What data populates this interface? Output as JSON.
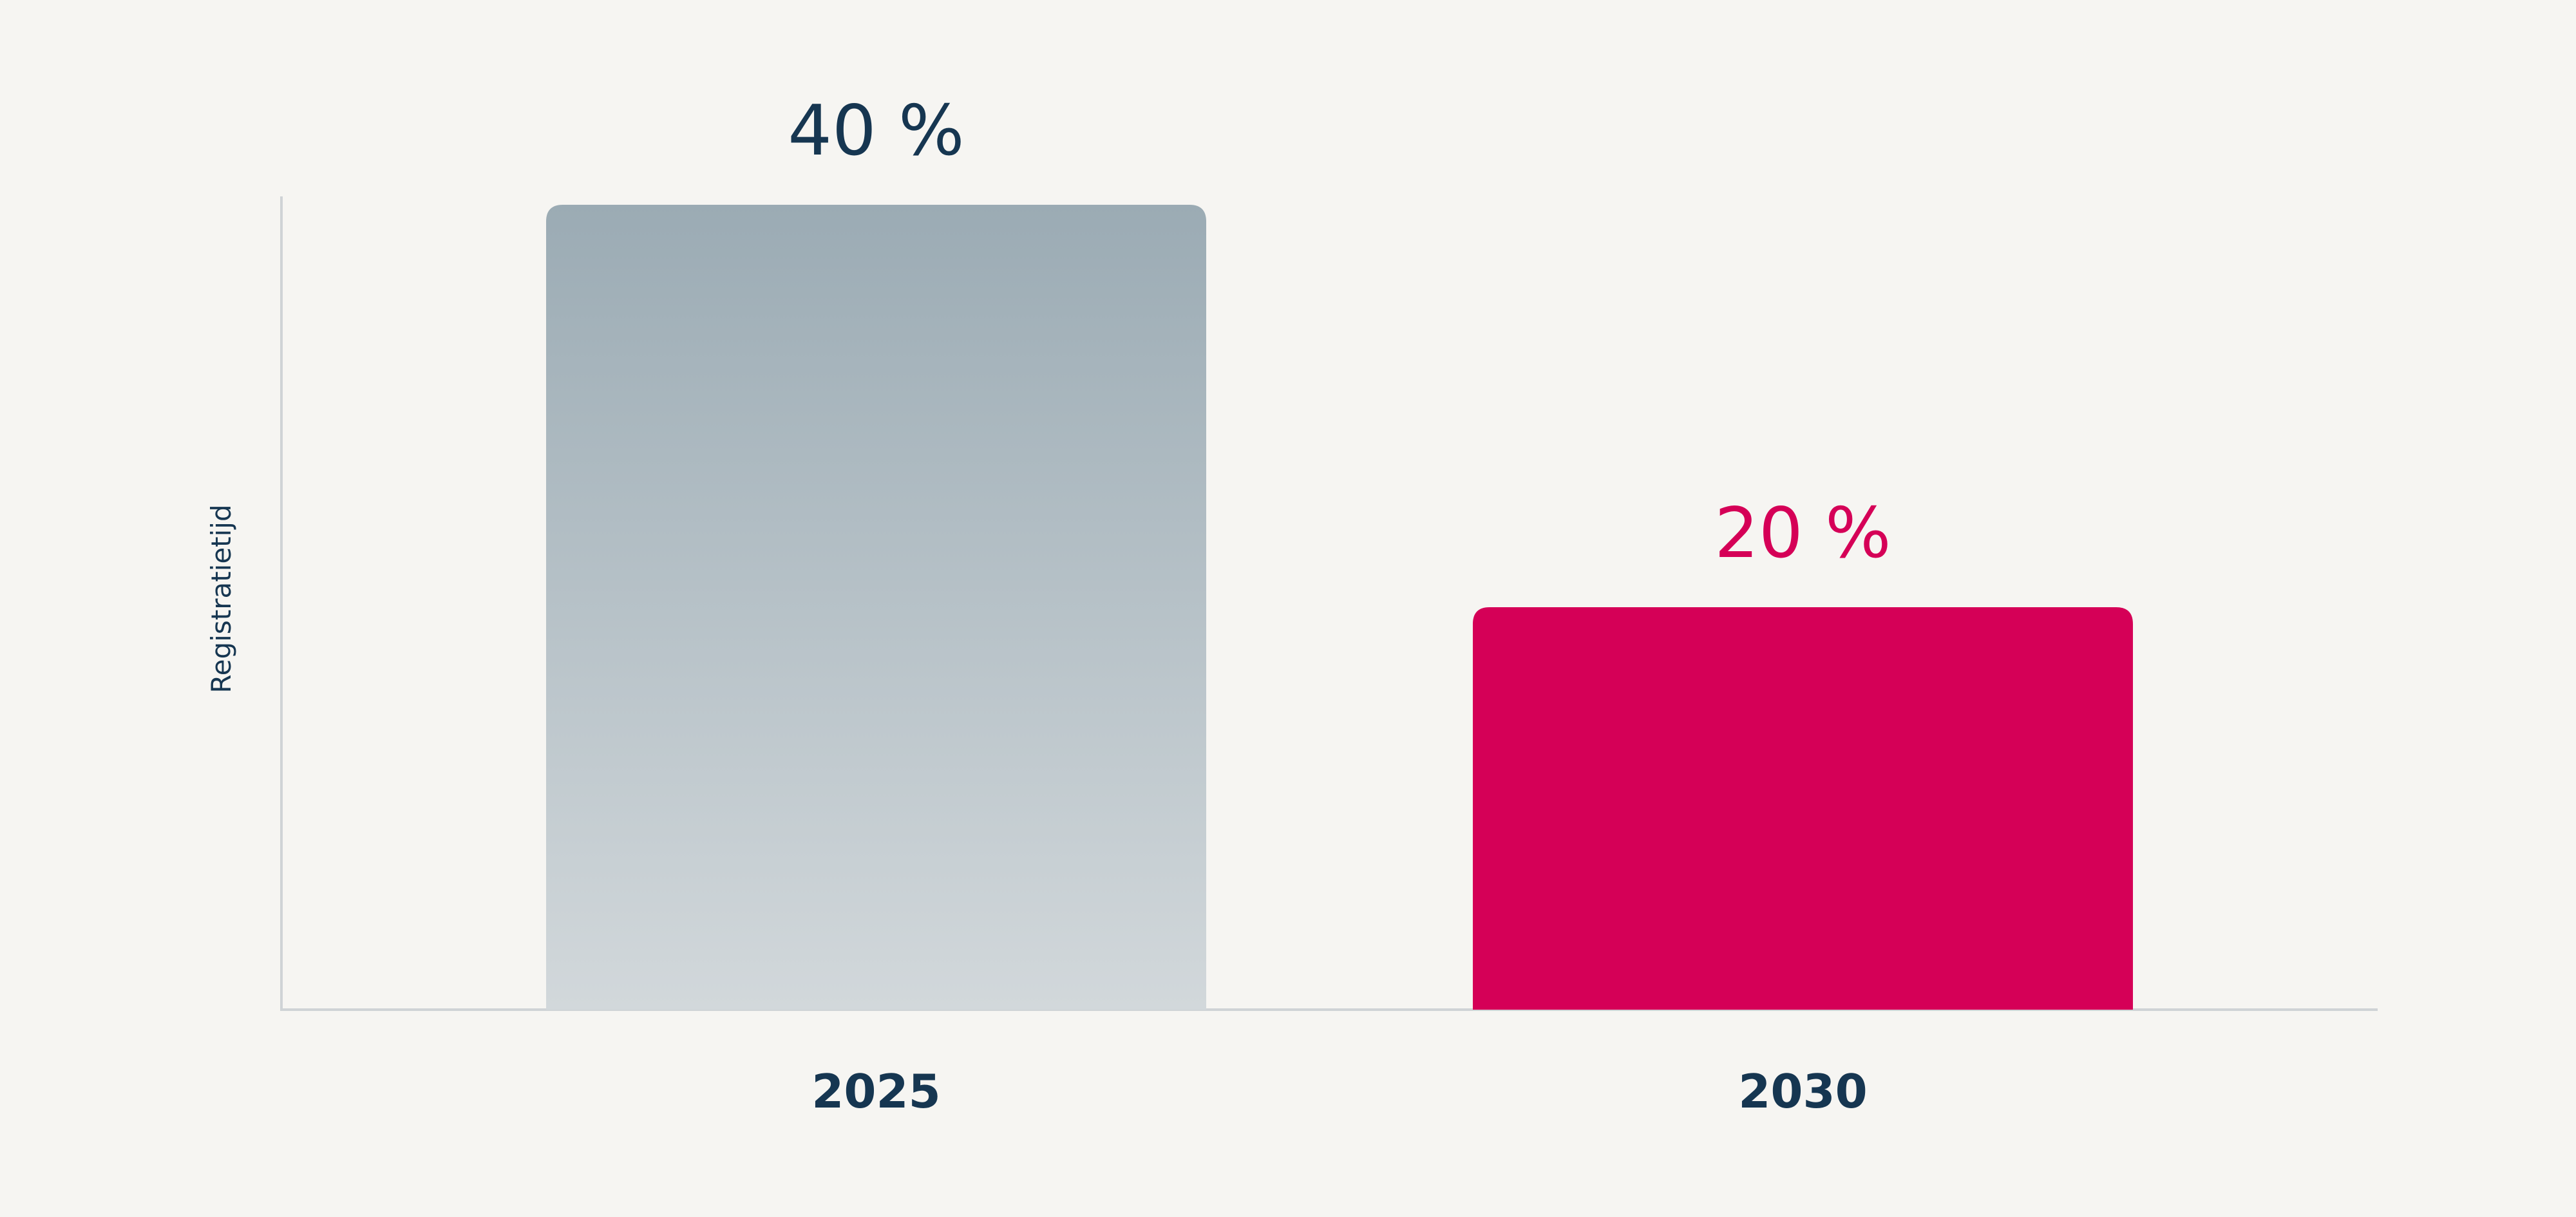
{
  "chart_data": {
    "type": "bar",
    "categories": [
      "2025",
      "2030"
    ],
    "values": [
      40,
      20
    ],
    "value_labels": [
      "40 %",
      "20 %"
    ],
    "ylabel": "Registratietijd",
    "ylim": [
      0,
      40
    ],
    "grid": false,
    "legend": "none",
    "colors": {
      "bar_2025_top": "#9babb4",
      "bar_2025_bottom": "#d2d8db",
      "bar_2030": "#d50057",
      "label_2025": "#163651",
      "label_2030": "#d50057",
      "axis": "#cfd3d6",
      "text": "#163651",
      "background": "#f6f5f2"
    }
  }
}
